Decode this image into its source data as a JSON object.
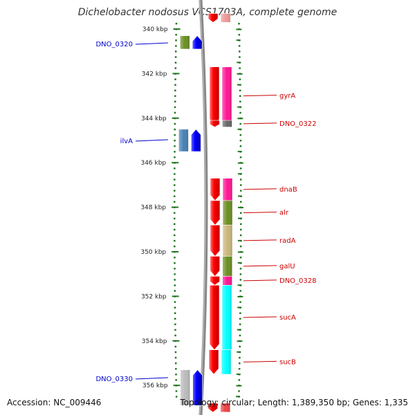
{
  "title": "Dichelobacter nodosus VCS1703A, complete genome",
  "accession_text": "Accession: NC_009446",
  "topology_text": "Topology: circular; Length: 1,389,350 bp; Genes: 1,335",
  "map": {
    "range_start_kbp": 339.5,
    "range_end_kbp": 356.6,
    "tick_labels": [
      {
        "kbp": 340,
        "label": "340 kbp"
      },
      {
        "kbp": 342,
        "label": "342 kbp"
      },
      {
        "kbp": 344,
        "label": "344 kbp"
      },
      {
        "kbp": 346,
        "label": "346 kbp"
      },
      {
        "kbp": 348,
        "label": "348 kbp"
      },
      {
        "kbp": 350,
        "label": "350 kbp"
      },
      {
        "kbp": 352,
        "label": "352 kbp"
      },
      {
        "kbp": 354,
        "label": "354 kbp"
      },
      {
        "kbp": 356,
        "label": "356 kbp"
      }
    ]
  },
  "genes": [
    {
      "name": "",
      "strand": "+",
      "start_kbp": 339.3,
      "end_kbp": 339.6,
      "cog_color": "#ee4444"
    },
    {
      "name": "",
      "strand": "+",
      "start_kbp": 339.3,
      "end_kbp": 339.7,
      "cog_color": "#ee9999"
    },
    {
      "name": "DNO_0320",
      "strand": "-",
      "start_kbp": 340.3,
      "end_kbp": 340.9,
      "cog_color": "#6b8e23"
    },
    {
      "name": "",
      "strand": "-",
      "start_kbp": 340.3,
      "end_kbp": 340.9,
      "cog_color": "#0000ff"
    },
    {
      "name": "gyrA",
      "strand": "+",
      "start_kbp": 341.7,
      "end_kbp": 344.3,
      "cog_color": "#ff1493"
    },
    {
      "name": "DNO_0322",
      "strand": "+",
      "start_kbp": 344.1,
      "end_kbp": 344.4,
      "cog_color": "#666666"
    },
    {
      "name": "ilvA",
      "strand": "-",
      "start_kbp": 344.5,
      "end_kbp": 345.5,
      "cog_color": "#4682b4"
    },
    {
      "name": "",
      "strand": "-",
      "start_kbp": 344.5,
      "end_kbp": 345.5,
      "cog_color": "#0000ff"
    },
    {
      "name": "dnaB",
      "strand": "+",
      "start_kbp": 346.7,
      "end_kbp": 347.7,
      "cog_color": "#ff1493"
    },
    {
      "name": "alr",
      "strand": "+",
      "start_kbp": 347.7,
      "end_kbp": 348.8,
      "cog_color": "#6b8e23"
    },
    {
      "name": "radA",
      "strand": "+",
      "start_kbp": 348.8,
      "end_kbp": 350.2,
      "cog_color": "#c9b67a"
    },
    {
      "name": "galU",
      "strand": "+",
      "start_kbp": 350.2,
      "end_kbp": 351.1,
      "cog_color": "#6b8e23"
    },
    {
      "name": "DNO_0328",
      "strand": "+",
      "start_kbp": 351.1,
      "end_kbp": 351.5,
      "cog_color": "#ff1493"
    },
    {
      "name": "sucA",
      "strand": "+",
      "start_kbp": 351.5,
      "end_kbp": 354.4,
      "cog_color": "#00ffff"
    },
    {
      "name": "sucB",
      "strand": "+",
      "start_kbp": 354.4,
      "end_kbp": 355.5,
      "cog_color": "#00ffff"
    },
    {
      "name": "DNO_0330",
      "strand": "-",
      "start_kbp": 355.3,
      "end_kbp": 356.9,
      "cog_color": "#bbbbbb"
    },
    {
      "name": "",
      "strand": "-",
      "start_kbp": 355.3,
      "end_kbp": 356.9,
      "cog_color": "#0000ff"
    },
    {
      "name": "",
      "strand": "+",
      "start_kbp": 356.8,
      "end_kbp": 357.2,
      "cog_color": "#ee4444"
    }
  ],
  "colors": {
    "forward_strand": "#ff0000",
    "reverse_strand": "#0000ff",
    "label_forward": "#cc0000",
    "label_reverse": "#0000cc",
    "tick": "#227722",
    "backbone": "#888888"
  }
}
